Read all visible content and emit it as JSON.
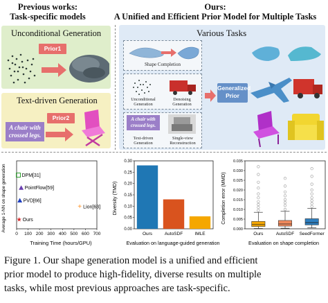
{
  "header": {
    "left_line1": "Previous works:",
    "left_line2": "Task-specific models",
    "right_line1": "Ours:",
    "right_line2": "A Unified and Efficient Prior Model for Multiple Tasks"
  },
  "left_panels": {
    "unconditional_title": "Unconditional Generation",
    "prior1_label": "Prior1",
    "text_title": "Text-driven Generation",
    "prior2_label": "Prior2",
    "prompt_line1": "A chair with",
    "prompt_line2": "crossed legs."
  },
  "right_panel": {
    "title": "Various Tasks",
    "shape_completion": "Shape Completion",
    "uncond_line1": "Unconditional",
    "uncond_line2": "Generation",
    "denoise_line1": "Denoising",
    "denoise_line2": "Generation",
    "prompt_line1": "A chair with",
    "prompt_line2": "crossed legs.",
    "text_line1": "Text-driven",
    "text_line2": "Generation",
    "sv_line1": "Single-view",
    "sv_line2": "Reconstruction",
    "gen_prior_line1": "Generalized",
    "gen_prior_line2": "Prior"
  },
  "figure_caption": {
    "line1": "Figure 1.  Our shape generation model is a unified and efficient",
    "line2": "prior model to produce high-fidelity, diverse results on multiple",
    "line3": "tasks, while most previous approaches are task-specific."
  },
  "chart_data": [
    {
      "type": "scatter",
      "xlabel": "Training Time (hours/GPU)",
      "ylabel": "Average 1-NN on shape generation",
      "xlim": [
        0,
        700
      ],
      "ylim": [
        0.52,
        0.95
      ],
      "xticks": [
        "0",
        "100",
        "200",
        "300",
        "400",
        "500",
        "600",
        "700"
      ],
      "points": [
        {
          "label": "DPM[31]",
          "x": 15,
          "y": 0.86,
          "color": "#2ca02c",
          "marker": "square"
        },
        {
          "label": "PointFlow[59]",
          "x": 40,
          "y": 0.78,
          "color": "#6a3fb0",
          "marker": "triangle"
        },
        {
          "label": "PVD[66]",
          "x": 28,
          "y": 0.7,
          "color": "#1f3fbf",
          "marker": "triangle"
        },
        {
          "label": "Ours",
          "x": 22,
          "y": 0.58,
          "color": "#d62728",
          "marker": "star"
        },
        {
          "label": "Lion[63]",
          "x": 550,
          "y": 0.66,
          "color": "#ff8c1a",
          "marker": "plus"
        }
      ]
    },
    {
      "type": "bar",
      "ylabel": "Diversity (TMD)",
      "xlabel": "Evaluation on language-guided generation",
      "ylim": [
        0,
        0.3
      ],
      "yticks": [
        "0.00",
        "0.05",
        "0.10",
        "0.15",
        "0.20",
        "0.25",
        "0.30"
      ],
      "categories": [
        "Ours",
        "AutoSDF",
        "IMLE"
      ],
      "values": [
        0.28,
        0.13,
        0.055
      ],
      "colors": [
        "#1f77b4",
        "#d9531e",
        "#f5a700"
      ]
    },
    {
      "type": "box",
      "ylabel": "Completion error (MMD)",
      "xlabel": "Evaluation on shape completion",
      "ylim": [
        0,
        0.035
      ],
      "yticks": [
        "0.000",
        "0.005",
        "0.010",
        "0.015",
        "0.020",
        "0.025",
        "0.030",
        "0.035"
      ],
      "categories": [
        "Ours",
        "AutoSDF",
        "SeedFormer"
      ],
      "boxes": [
        {
          "whisker_low": 0.0002,
          "q1": 0.0012,
          "median": 0.0022,
          "q3": 0.0038,
          "whisker_high": 0.0085,
          "color": "#f5a700"
        },
        {
          "whisker_low": 0.0003,
          "q1": 0.0014,
          "median": 0.0025,
          "q3": 0.0043,
          "whisker_high": 0.009,
          "color": "#f08a5d"
        },
        {
          "whisker_low": 0.0005,
          "q1": 0.002,
          "median": 0.0032,
          "q3": 0.0052,
          "whisker_high": 0.0105,
          "color": "#2e7fc0"
        }
      ],
      "outliers": [
        {
          "box": 0,
          "values": [
            0.0095,
            0.011,
            0.0125,
            0.014,
            0.016,
            0.018,
            0.021,
            0.024,
            0.028,
            0.032
          ]
        },
        {
          "box": 1,
          "values": [
            0.01,
            0.012,
            0.0135,
            0.015,
            0.017,
            0.019,
            0.022,
            0.026
          ]
        },
        {
          "box": 2,
          "values": [
            0.0115,
            0.013,
            0.0145,
            0.016,
            0.018,
            0.02,
            0.023,
            0.027,
            0.031
          ]
        }
      ]
    }
  ]
}
